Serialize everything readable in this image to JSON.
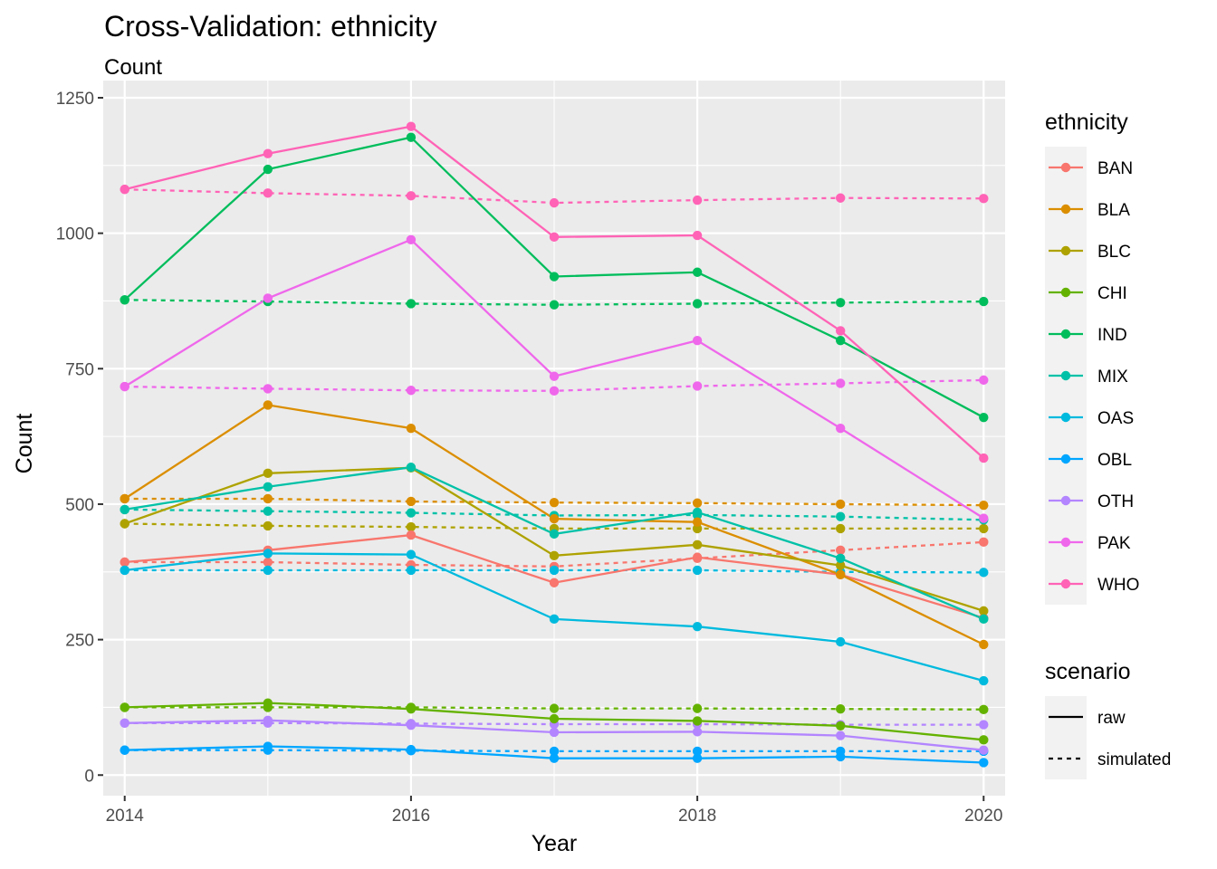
{
  "chart_data": {
    "type": "line",
    "title": "Cross-Validation: ethnicity",
    "subtitle": "Count",
    "xlabel": "Year",
    "ylabel": "Count",
    "x": [
      2014,
      2015,
      2016,
      2017,
      2018,
      2019,
      2020
    ],
    "xticks": [
      "2014",
      "2016",
      "2018",
      "2020"
    ],
    "yticks": [
      "0",
      "250",
      "500",
      "750",
      "1000",
      "1250"
    ],
    "xlim": [
      2013.85,
      2020.15
    ],
    "ylim": [
      -38,
      1250
    ],
    "grid": true,
    "legend_placement": "right",
    "legend_colour_title": "ethnicity",
    "legend_linetype_title": "scenario",
    "scenarios": [
      "raw",
      "simulated"
    ],
    "series": [
      {
        "name": "BAN",
        "color": "#F8766D",
        "raw": [
          393,
          415,
          443,
          355,
          402,
          370,
          290
        ],
        "simulated": [
          393,
          393,
          388,
          385,
          400,
          415,
          430
        ]
      },
      {
        "name": "BLA",
        "color": "#DB8E00",
        "raw": [
          510,
          683,
          640,
          473,
          467,
          370,
          241
        ],
        "simulated": [
          510,
          510,
          505,
          503,
          502,
          500,
          498
        ]
      },
      {
        "name": "BLC",
        "color": "#AEA200",
        "raw": [
          464,
          557,
          567,
          405,
          425,
          387,
          303
        ],
        "simulated": [
          464,
          460,
          458,
          455,
          455,
          455,
          455
        ]
      },
      {
        "name": "CHI",
        "color": "#64B200",
        "raw": [
          125,
          133,
          122,
          104,
          100,
          91,
          65
        ],
        "simulated": [
          125,
          125,
          125,
          123,
          123,
          122,
          121
        ]
      },
      {
        "name": "IND",
        "color": "#00BD5C",
        "raw": [
          877,
          1118,
          1177,
          920,
          928,
          802,
          660
        ],
        "simulated": [
          877,
          874,
          870,
          868,
          870,
          872,
          874
        ]
      },
      {
        "name": "MIX",
        "color": "#00C1A7",
        "raw": [
          490,
          532,
          568,
          445,
          485,
          400,
          288
        ],
        "simulated": [
          490,
          487,
          484,
          479,
          480,
          477,
          471
        ]
      },
      {
        "name": "OAS",
        "color": "#00BADE",
        "raw": [
          378,
          409,
          407,
          288,
          274,
          246,
          174
        ],
        "simulated": [
          378,
          378,
          378,
          378,
          378,
          375,
          374
        ]
      },
      {
        "name": "OBL",
        "color": "#00A6FF",
        "raw": [
          46,
          53,
          47,
          31,
          31,
          34,
          23
        ],
        "simulated": [
          46,
          46,
          45,
          44,
          44,
          44,
          44
        ]
      },
      {
        "name": "OTH",
        "color": "#B385FF",
        "raw": [
          96,
          101,
          92,
          79,
          80,
          73,
          46
        ],
        "simulated": [
          96,
          96,
          95,
          94,
          94,
          93,
          93
        ]
      },
      {
        "name": "PAK",
        "color": "#EF67EB",
        "raw": [
          717,
          880,
          988,
          736,
          802,
          640,
          474
        ],
        "simulated": [
          717,
          713,
          710,
          709,
          718,
          723,
          729
        ]
      },
      {
        "name": "WHO",
        "color": "#FF63B6",
        "raw": [
          1081,
          1147,
          1197,
          993,
          996,
          820,
          585
        ],
        "simulated": [
          1081,
          1074,
          1069,
          1056,
          1061,
          1065,
          1064
        ]
      }
    ]
  }
}
